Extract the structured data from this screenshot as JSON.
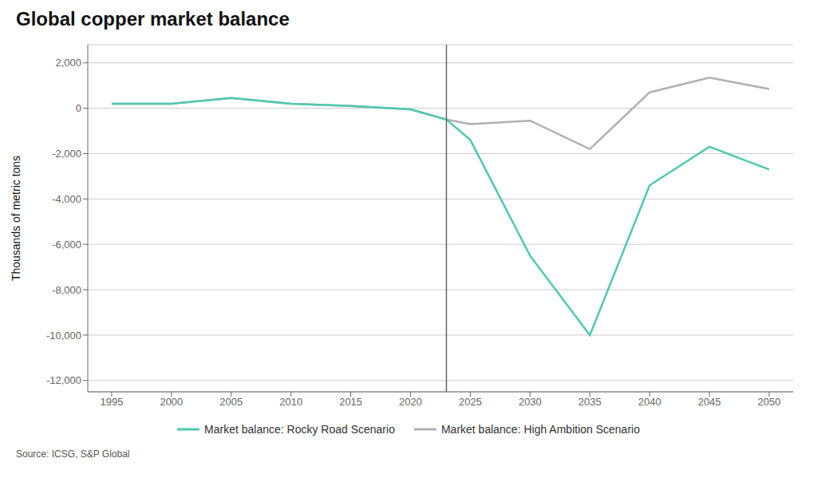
{
  "chart_data": {
    "type": "line",
    "title": "Global copper market balance",
    "ylabel": "Thousands of metric tons",
    "source": "Source: ICSG, S&P Global",
    "x": [
      1995,
      2000,
      2005,
      2010,
      2015,
      2020,
      2023,
      2025,
      2030,
      2035,
      2040,
      2045,
      2050
    ],
    "series": [
      {
        "name": "Market balance: Rocky Road Scenario",
        "color": "#4ec9b0",
        "values": [
          200,
          200,
          450,
          200,
          100,
          -50,
          -500,
          -1400,
          -6500,
          -10000,
          -3400,
          -1700,
          -2700
        ]
      },
      {
        "name": "Market balance: High Ambition Scenario",
        "color": "#b0b0b0",
        "values": [
          200,
          200,
          450,
          200,
          100,
          -50,
          -500,
          -700,
          -550,
          -1800,
          700,
          1350,
          850
        ]
      }
    ],
    "xlim": [
      1993,
      2052
    ],
    "xticks": [
      1995,
      2000,
      2005,
      2010,
      2015,
      2020,
      2025,
      2030,
      2035,
      2040,
      2045,
      2050
    ],
    "ylim": [
      -12500,
      2800
    ],
    "yticks": [
      {
        "value": -12000,
        "label": "-12,000"
      },
      {
        "value": -10000,
        "label": "-10,000"
      },
      {
        "value": -8000,
        "label": "-8,000"
      },
      {
        "value": -6000,
        "label": "-6,000"
      },
      {
        "value": -4000,
        "label": "-4,000"
      },
      {
        "value": -2000,
        "label": "-2,000"
      },
      0,
      {
        "value": 2000,
        "label": "2,000"
      }
    ],
    "vline_x": 2023,
    "vline_color": "#666666",
    "grid": true,
    "legend": "bottom"
  }
}
